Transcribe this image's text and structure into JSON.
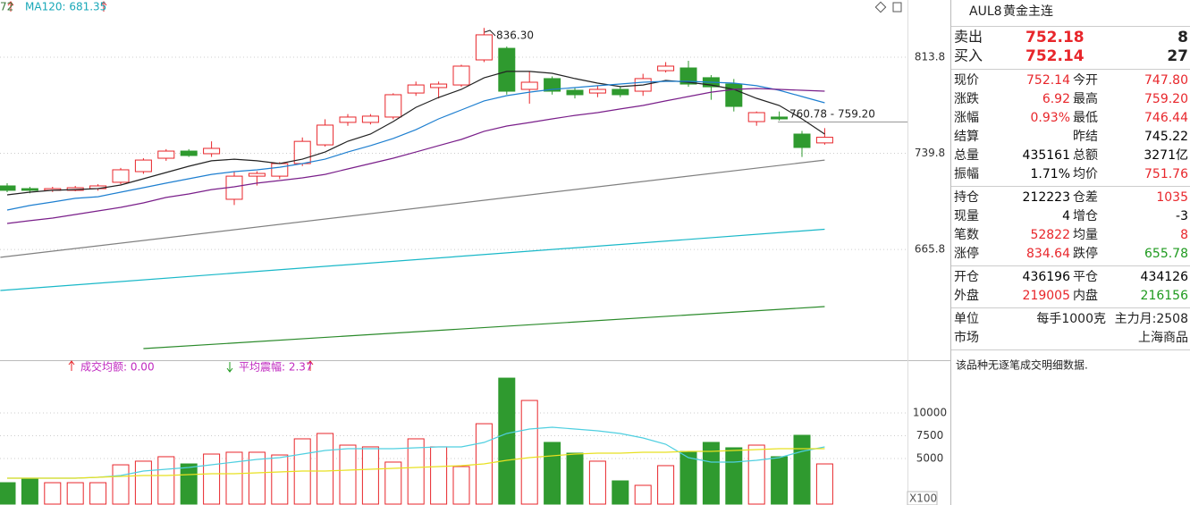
{
  "chart_data": [
    {
      "type": "candlestick",
      "indicator_labels": [
        {
          "text": "72",
          "color": "#3a7a3a"
        },
        {
          "text": "MA120: 681.35",
          "color": "#19a8b8"
        }
      ],
      "annotations": [
        "836.30",
        "760.78 - 759.20"
      ],
      "up_color": "#e8262b",
      "down_color": "#2f9a2f",
      "open": [
        714.7,
        712.6,
        711.3,
        711.3,
        712.6,
        717.5,
        725.7,
        736,
        741.5,
        739.5,
        704.4,
        722.2,
        722.2,
        731.9,
        746.3,
        763.6,
        763.6,
        767.7,
        786.2,
        790.4,
        792.4,
        811.7,
        820.6,
        789,
        797.3,
        788.3,
        786.2,
        789,
        787.6,
        803.4,
        805.5,
        798,
        793.1,
        764.2,
        767.7,
        754.6,
        747.8
      ],
      "high": [
        716.8,
        714,
        714,
        714.7,
        716,
        728.5,
        736,
        743,
        743,
        749,
        726,
        726,
        733,
        752,
        766,
        770,
        770,
        786,
        795,
        795,
        808,
        836.3,
        822,
        803,
        799,
        790,
        792,
        791,
        801,
        810,
        811,
        800,
        797,
        772,
        772,
        757,
        759.2
      ],
      "low": [
        709.9,
        709,
        710,
        710.6,
        711,
        716,
        724,
        734,
        737,
        737,
        700,
        715,
        720,
        730,
        745,
        761,
        762,
        766,
        784,
        782,
        791,
        810,
        785,
        778,
        785,
        782,
        783,
        783,
        784,
        802,
        791,
        781,
        772,
        761,
        765,
        737,
        746.44
      ],
      "close": [
        711.3,
        711.3,
        712.6,
        713.3,
        714.7,
        727.1,
        734.6,
        741.5,
        738.1,
        743.6,
        722.2,
        724.3,
        731.9,
        749,
        761.5,
        767.7,
        768.4,
        784.9,
        792.4,
        793.1,
        806.9,
        831,
        787.6,
        794.5,
        787.6,
        784.9,
        789,
        784.9,
        797.3,
        806.9,
        793.1,
        791,
        775.9,
        771.1,
        766.3,
        744.3,
        752.14
      ],
      "series": [
        {
          "color": "#222222",
          "values": [
            707.8,
            709.9,
            711.3,
            711.9,
            712.6,
            715.4,
            720.2,
            725,
            729.8,
            734,
            735.3,
            734,
            731.9,
            735.3,
            740.8,
            749.1,
            754.6,
            764.2,
            775.2,
            782.8,
            789,
            797.9,
            802.8,
            802.8,
            801.4,
            797.3,
            793.8,
            791.1,
            792.4,
            795.9,
            794.5,
            792.4,
            789,
            782.1,
            776.6,
            766.3,
            754.6
          ]
        },
        {
          "color": "#1e7fd0",
          "values": [
            696.1,
            699.6,
            702.3,
            705.1,
            706.4,
            709.9,
            713.3,
            716.8,
            720.2,
            723.6,
            725.7,
            727.1,
            729.1,
            731.9,
            735.3,
            740.8,
            745.7,
            751.2,
            758,
            766.3,
            773.2,
            780.1,
            784.2,
            786.9,
            789,
            790.4,
            791.8,
            793.1,
            794.5,
            795.2,
            795.2,
            794.5,
            793.8,
            791.8,
            788.3,
            783.5,
            778.7
          ]
        },
        {
          "color": "#7a1f8a",
          "values": [
            685.8,
            687.9,
            689.9,
            692.7,
            695.4,
            698.2,
            701.6,
            705.8,
            708.5,
            711.9,
            714,
            716.8,
            718.8,
            720.9,
            723.6,
            727.8,
            731.9,
            736,
            740.8,
            745.7,
            750.5,
            756.7,
            760.8,
            763.5,
            766.3,
            769,
            771.1,
            773.9,
            776.6,
            780.1,
            783.5,
            786.9,
            789,
            789.7,
            789,
            788.3,
            787.6
          ]
        },
        {
          "color": "#808080",
          "x": [
            -0.3,
            36
          ],
          "values": [
            659.7,
            734.6
          ]
        },
        {
          "color": "#19b8c8",
          "x": [
            -0.3,
            36
          ],
          "values": [
            634.2,
            681.35
          ]
        },
        {
          "color": "#2a8a2a",
          "x": [
            6,
            36
          ],
          "values": [
            589.5,
            621.8
          ]
        }
      ],
      "ylim": [
        582.6,
        857.8
      ],
      "yticks": [
        665.8,
        739.8,
        813.8
      ],
      "grid": true
    },
    {
      "type": "bar",
      "annotations": [
        {
          "text": "成交均额: 0.00",
          "color": "#c02ac0"
        },
        {
          "text": "平均震幅: 2.37",
          "color": "#c02ac0"
        }
      ],
      "unit": "X100",
      "values": [
        2350,
        2840,
        2350,
        2350,
        2350,
        4310,
        4710,
        5200,
        4410,
        5490,
        5690,
        5690,
        5390,
        7160,
        7750,
        6470,
        6280,
        4610,
        7160,
        6280,
        4120,
        8820,
        13820,
        11370,
        6770,
        5590,
        4710,
        2550,
        2060,
        4220,
        5780,
        6770,
        6180,
        6470,
        5200,
        7550,
        4410
      ],
      "series": [
        {
          "color": "#4fcfe0",
          "values": [
            2843,
            2843,
            2843,
            2843,
            2941,
            3137,
            3627,
            3824,
            4020,
            4314,
            4608,
            4902,
            5098,
            5490,
            5882,
            6078,
            6078,
            6078,
            6176,
            6275,
            6275,
            6765,
            7745,
            8235,
            8431,
            8235,
            8039,
            7745,
            7255,
            6569,
            5098,
            4608,
            4608,
            4804,
            5098,
            5784,
            6275
          ]
        },
        {
          "color": "#e8e020",
          "values": [
            2843,
            2843,
            2843,
            2843,
            2941,
            3039,
            3137,
            3137,
            3235,
            3333,
            3333,
            3431,
            3529,
            3627,
            3627,
            3725,
            3824,
            3922,
            4020,
            4118,
            4216,
            4412,
            4804,
            5098,
            5294,
            5490,
            5588,
            5588,
            5686,
            5686,
            5784,
            5784,
            5882,
            5980,
            6078,
            6078,
            6078
          ]
        }
      ],
      "ylim": [
        0,
        15590
      ],
      "yticks": [
        5000,
        7500,
        10000
      ],
      "grid": true
    }
  ],
  "quote": {
    "symbol": "AUL8",
    "name": "黄金主连",
    "book": [
      {
        "label": "卖出",
        "price": "752.18",
        "volume": "8"
      },
      {
        "label": "买入",
        "price": "752.14",
        "volume": "27"
      }
    ],
    "price_color": "#e8262b",
    "groups": [
      [
        [
          {
            "label": "现价",
            "value": "752.14",
            "color": "#e8262b"
          },
          {
            "label": "今开",
            "value": "747.80",
            "color": "#e8262b"
          }
        ],
        [
          {
            "label": "涨跌",
            "value": "6.92",
            "color": "#e8262b"
          },
          {
            "label": "最高",
            "value": "759.20",
            "color": "#e8262b"
          }
        ],
        [
          {
            "label": "涨幅",
            "value": "0.93%",
            "color": "#e8262b"
          },
          {
            "label": "最低",
            "value": "746.44",
            "color": "#e8262b"
          }
        ],
        [
          {
            "label": "结算"
          },
          {
            "label": "昨结",
            "value": "745.22",
            "color": "#000000"
          }
        ],
        [
          {
            "label": "总量",
            "value": "435161",
            "color": "#000000"
          },
          {
            "label": "总额",
            "value": "3271亿",
            "color": "#000000"
          }
        ],
        [
          {
            "label": "振幅",
            "value": "1.71%",
            "color": "#000000"
          },
          {
            "label": "均价",
            "value": "751.76",
            "color": "#e8262b"
          }
        ]
      ],
      [
        [
          {
            "label": "持仓",
            "value": "212223",
            "color": "#000000"
          },
          {
            "label": "仓差",
            "value": "1035",
            "color": "#e8262b"
          }
        ],
        [
          {
            "label": "现量",
            "value": "4",
            "color": "#000000"
          },
          {
            "label": "增仓",
            "value": "-3",
            "color": "#000000"
          }
        ],
        [
          {
            "label": "笔数",
            "value": "52822",
            "color": "#e8262b"
          },
          {
            "label": "均量",
            "value": "8",
            "color": "#e8262b"
          }
        ],
        [
          {
            "label": "涨停",
            "value": "834.64",
            "color": "#e8262b"
          },
          {
            "label": "跌停",
            "value": "655.78",
            "color": "#1f9a1f"
          }
        ]
      ],
      [
        [
          {
            "label": "开仓",
            "value": "436196",
            "color": "#000000"
          },
          {
            "label": "平仓",
            "value": "434126",
            "color": "#000000"
          }
        ],
        [
          {
            "label": "外盘",
            "value": "219005",
            "color": "#e8262b"
          },
          {
            "label": "内盘",
            "value": "216156",
            "color": "#1f9a1f"
          }
        ]
      ]
    ],
    "unit": {
      "label": "单位",
      "values": [
        "每手1000克",
        "主力月:2508"
      ]
    },
    "market": {
      "label": "市场",
      "value": "上海商品"
    },
    "note": "该品种无逐笔成交明细数据."
  }
}
